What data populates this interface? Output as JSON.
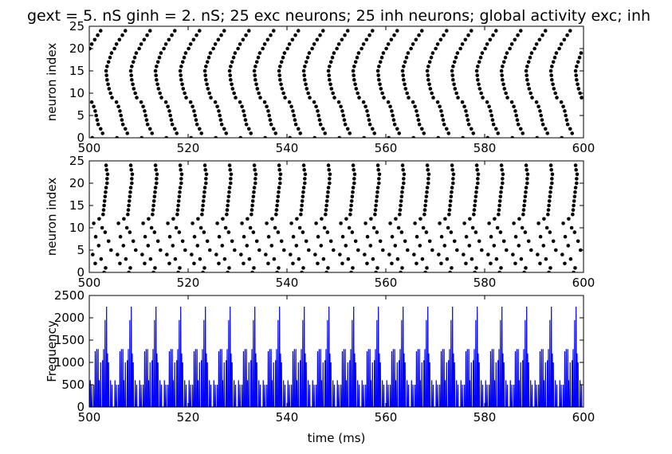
{
  "figure": {
    "title": "gext = 5. nS ginh = 2. nS; 25 exc neurons; 25 inh neurons; global activity exc; inh"
  },
  "chart_data": [
    {
      "type": "scatter",
      "name": "exc-raster",
      "xlabel": "",
      "ylabel": "neuron index",
      "xlim": [
        500,
        600
      ],
      "ylim": [
        0,
        25
      ],
      "xticks": [
        500,
        520,
        540,
        560,
        580,
        600
      ],
      "yticks": [
        0,
        5,
        10,
        15,
        20,
        25
      ],
      "grid": false,
      "marker_color": "#000000",
      "cycle_period_ms": 5.0,
      "cycle_start_ms": 500.0,
      "cycle_end_ms": 600.0,
      "spike_offsets_ms": [
        [
          0,
          0.6
        ],
        [
          1,
          2.7
        ],
        [
          2,
          2.3
        ],
        [
          3,
          1.8
        ],
        [
          4,
          1.6
        ],
        [
          5,
          1.4
        ],
        [
          6,
          1.2
        ],
        [
          7,
          0.9
        ],
        [
          8,
          0.5
        ],
        [
          9,
          4.6
        ],
        [
          10,
          4.3
        ],
        [
          11,
          4.0
        ],
        [
          12,
          3.8
        ],
        [
          13,
          3.6
        ],
        [
          14,
          3.5
        ],
        [
          15,
          3.4
        ],
        [
          16,
          3.6
        ],
        [
          17,
          3.9
        ],
        [
          18,
          4.2
        ],
        [
          19,
          4.5
        ],
        [
          20,
          0.1
        ],
        [
          21,
          0.5
        ],
        [
          22,
          1.1
        ],
        [
          23,
          1.7
        ],
        [
          24,
          2.3
        ]
      ]
    },
    {
      "type": "scatter",
      "name": "inh-raster",
      "xlabel": "",
      "ylabel": "neuron index",
      "xlim": [
        500,
        600
      ],
      "ylim": [
        0,
        25
      ],
      "xticks": [
        500,
        520,
        540,
        560,
        580,
        600
      ],
      "yticks": [
        0,
        5,
        10,
        15,
        20,
        25
      ],
      "grid": false,
      "marker_color": "#000000",
      "cycle_period_ms": 5.0,
      "cycle_start_ms": 500.0,
      "cycle_end_ms": 600.0,
      "spike_offsets_ms": [
        [
          0,
          3.0
        ],
        [
          1,
          3.3
        ],
        [
          2,
          1.2
        ],
        [
          3,
          2.4
        ],
        [
          4,
          0.7
        ],
        [
          5,
          4.4
        ],
        [
          6,
          1.9
        ],
        [
          7,
          3.9
        ],
        [
          8,
          1.3
        ],
        [
          9,
          3.2
        ],
        [
          10,
          2.6
        ],
        [
          11,
          0.9
        ],
        [
          12,
          2.0
        ],
        [
          13,
          2.8
        ],
        [
          14,
          2.9
        ],
        [
          15,
          3.0
        ],
        [
          16,
          3.1
        ],
        [
          17,
          3.2
        ],
        [
          18,
          3.3
        ],
        [
          19,
          3.4
        ],
        [
          20,
          3.6
        ],
        [
          21,
          3.6
        ],
        [
          22,
          3.7
        ],
        [
          23,
          3.5
        ],
        [
          24,
          3.4
        ]
      ]
    },
    {
      "type": "line",
      "name": "global-activity",
      "xlabel": "time (ms)",
      "ylabel": "Frequency",
      "xlim": [
        500,
        600
      ],
      "ylim": [
        0,
        2500
      ],
      "xticks": [
        500,
        520,
        540,
        560,
        580,
        600
      ],
      "yticks": [
        0,
        500,
        1000,
        1500,
        2000,
        2500
      ],
      "grid": false,
      "line_color": "#0000ff",
      "cycle_period_ms": 5.0,
      "cycle_start_ms": 500.0,
      "cycle_end_ms": 600.0,
      "peaks": [
        [
          0.2,
          600
        ],
        [
          0.5,
          500
        ],
        [
          0.9,
          500
        ],
        [
          1.2,
          1250
        ],
        [
          1.5,
          1300
        ],
        [
          1.8,
          1300
        ],
        [
          2.0,
          600
        ],
        [
          2.3,
          1000
        ],
        [
          2.7,
          1050
        ],
        [
          2.9,
          1300
        ],
        [
          3.2,
          1950
        ],
        [
          3.5,
          2250
        ],
        [
          3.7,
          1200
        ],
        [
          3.9,
          1000
        ],
        [
          4.3,
          600
        ],
        [
          4.6,
          500
        ]
      ]
    }
  ]
}
